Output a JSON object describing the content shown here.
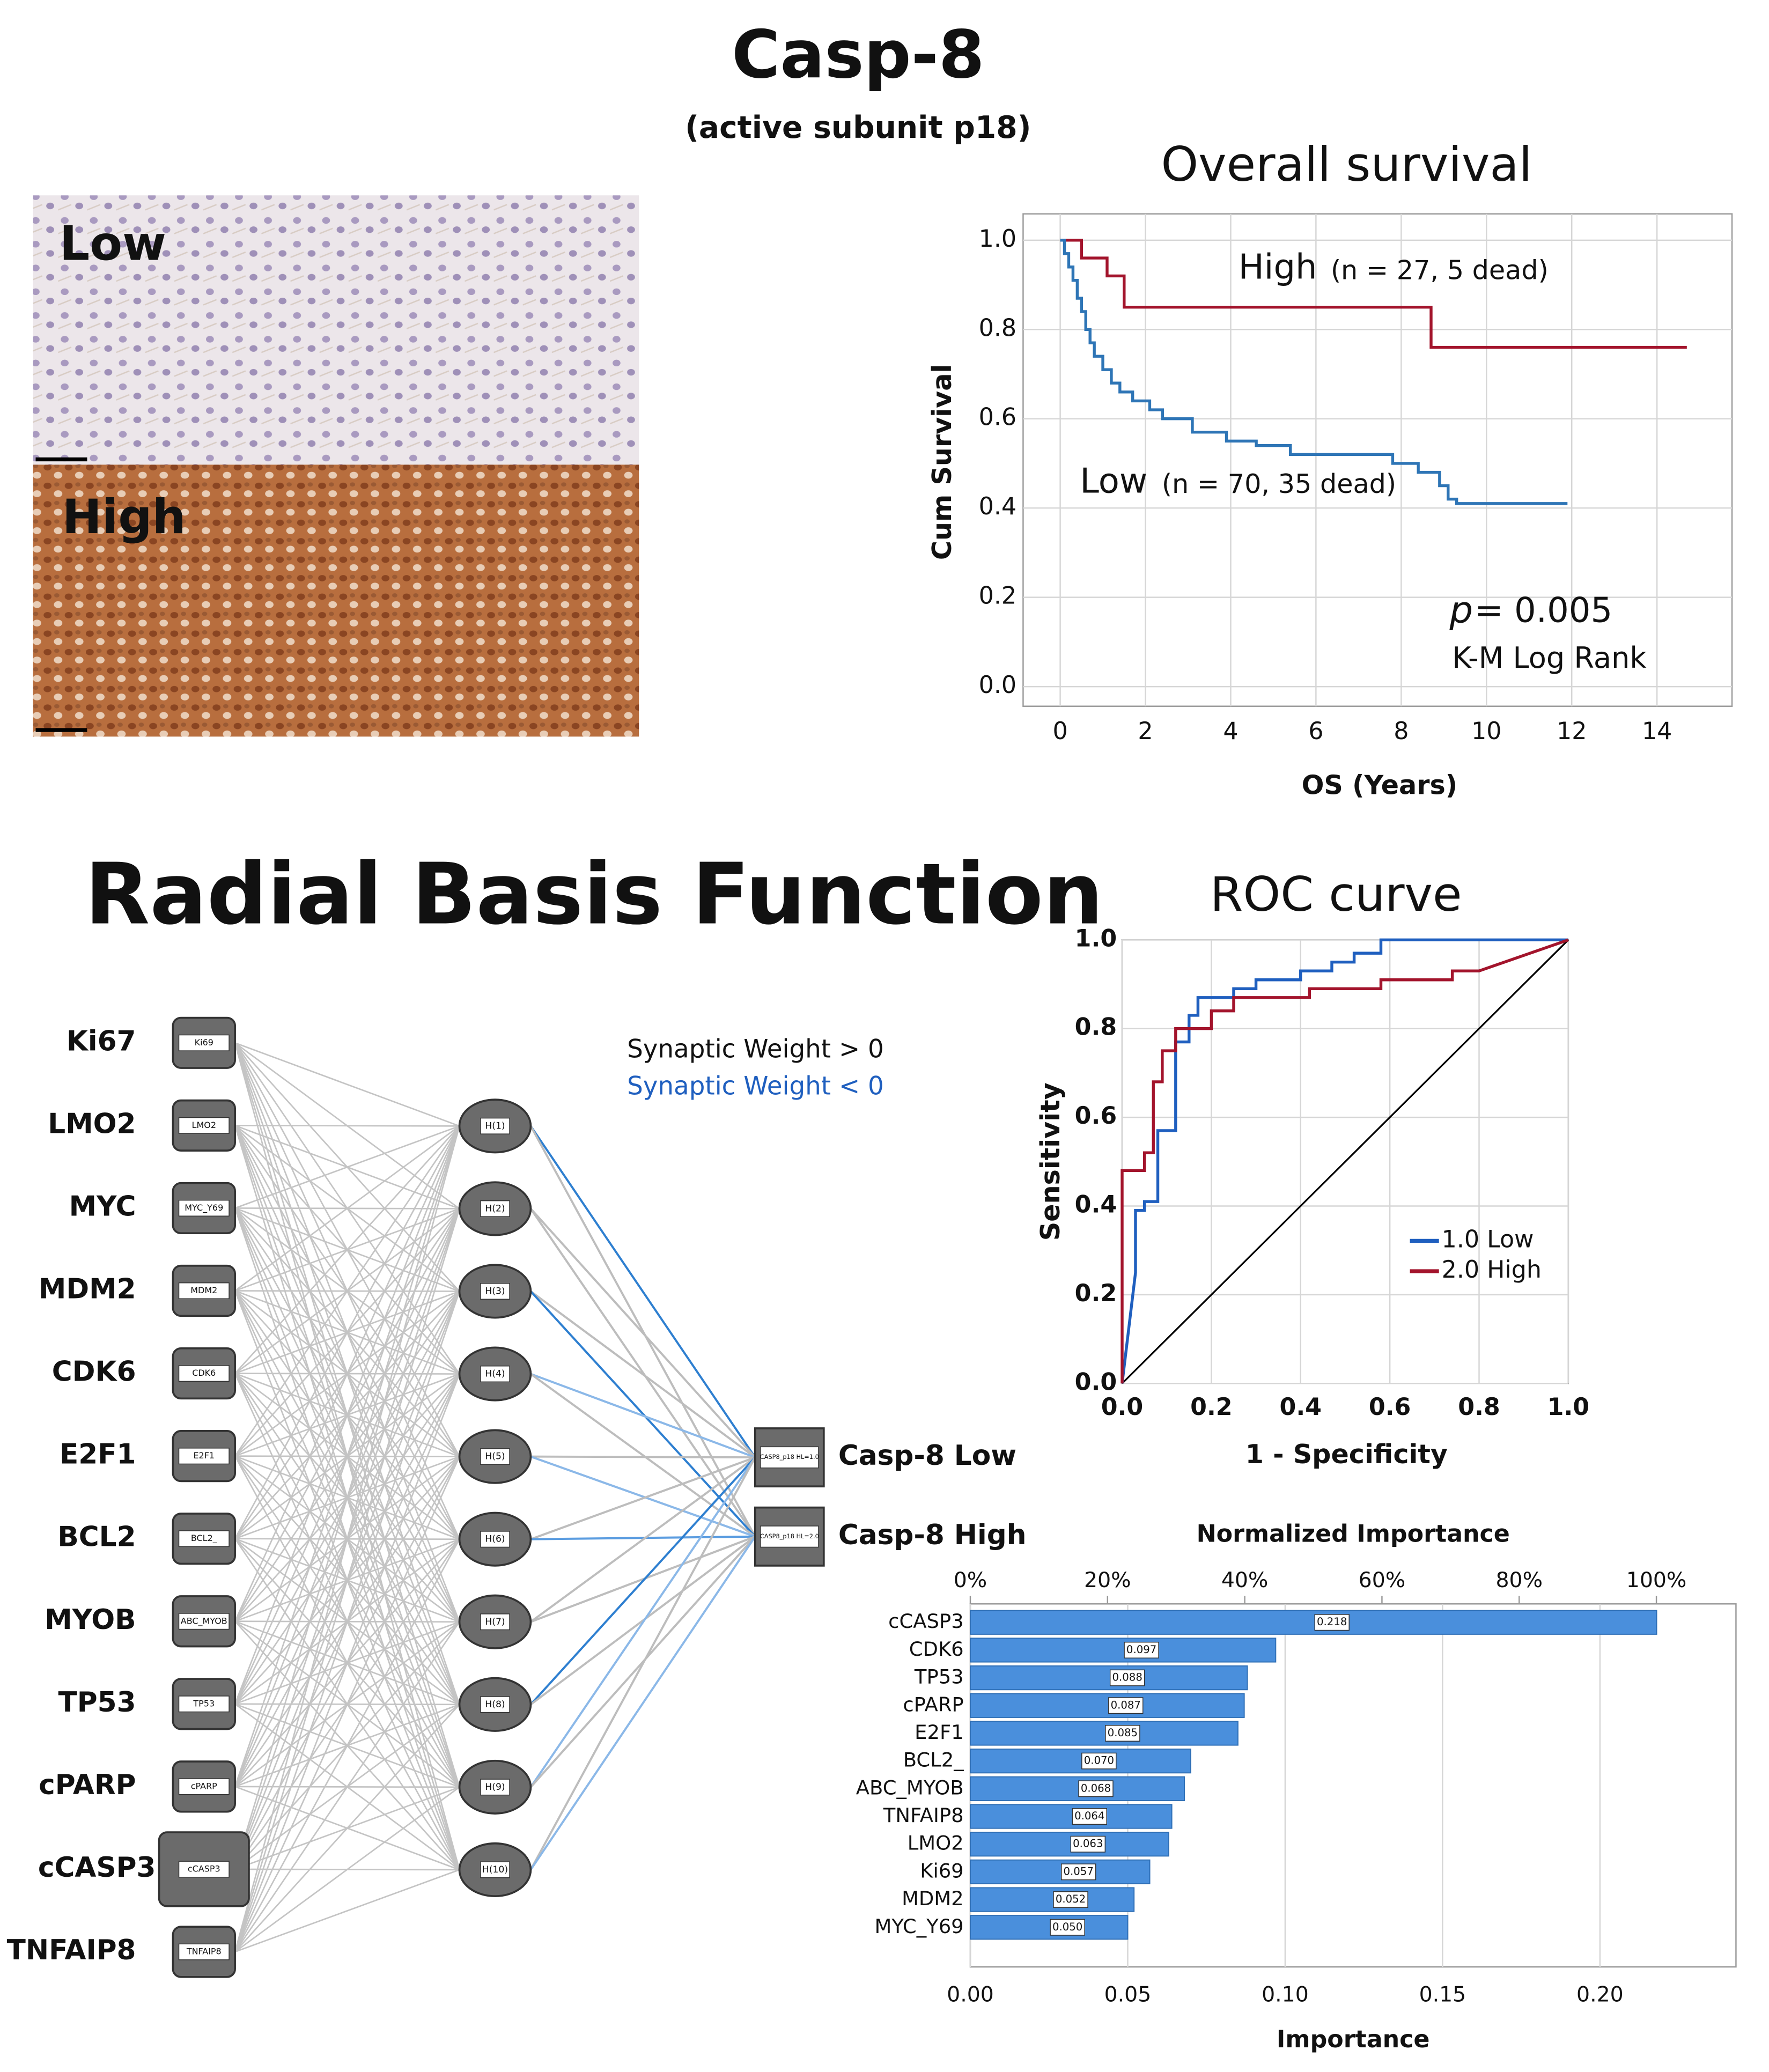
{
  "figure": {
    "title": "Casp-8",
    "subtitle": "(active subunit p18)",
    "panels": [
      "Low",
      "High"
    ]
  },
  "network": {
    "title": "Radial Basis Function",
    "legend": [
      "Synaptic Weight > 0",
      "Synaptic Weight < 0"
    ],
    "inputs": [
      {
        "label": "Ki67",
        "node": "Ki69"
      },
      {
        "label": "LMO2",
        "node": "LMO2"
      },
      {
        "label": "MYC",
        "node": "MYC_Y69"
      },
      {
        "label": "MDM2",
        "node": "MDM2"
      },
      {
        "label": "CDK6",
        "node": "CDK6"
      },
      {
        "label": "E2F1",
        "node": "E2F1"
      },
      {
        "label": "BCL2",
        "node": "BCL2_"
      },
      {
        "label": "MYOB",
        "node": "ABC_MYOB"
      },
      {
        "label": "TP53",
        "node": "TP53"
      },
      {
        "label": "cPARP",
        "node": "cPARP"
      },
      {
        "label": "cCASP3",
        "node": "cCASP3"
      },
      {
        "label": "TNFAIP8",
        "node": "TNFAIP8"
      }
    ],
    "hidden": [
      "H(1)",
      "H(2)",
      "H(3)",
      "H(4)",
      "H(5)",
      "H(6)",
      "H(7)",
      "H(8)",
      "H(9)",
      "H(10)"
    ],
    "outputs": [
      {
        "label": "Casp-8 Low",
        "node": "CASP8_p18 HL=1.0"
      },
      {
        "label": "Casp-8 High",
        "node": "CASP8_p18 HL=2.0"
      }
    ]
  },
  "chart_data": [
    {
      "type": "line",
      "title": "Overall survival",
      "x_label": "OS (Years)",
      "y_label": "Cum Survival",
      "grid": true,
      "xlim": [
        -0.87,
        15.76
      ],
      "ylim": [
        -0.044,
        1.059
      ],
      "xticks": [
        0,
        2,
        4,
        6,
        8,
        10,
        12,
        14
      ],
      "yticks": [
        {
          "value": 0,
          "label": "0.0"
        },
        0.2,
        0.4,
        0.6,
        0.8,
        {
          "value": 1,
          "label": "1.0"
        }
      ],
      "series": [
        {
          "name": "High",
          "annotation": "(n = 27, 5 dead)",
          "color": "#a3142c",
          "x": [
            0,
            0.5,
            0.5,
            1.1,
            1.1,
            1.5,
            1.5,
            8.7,
            8.7,
            14.7
          ],
          "values": [
            1,
            1,
            0.96,
            0.96,
            0.92,
            0.92,
            0.85,
            0.85,
            0.76,
            0.76
          ]
        },
        {
          "name": "Low",
          "annotation": "(n = 70, 35 dead)",
          "color": "#2e75b6",
          "x": [
            0,
            0.1,
            0.1,
            0.2,
            0.2,
            0.3,
            0.3,
            0.4,
            0.4,
            0.5,
            0.5,
            0.6,
            0.6,
            0.7,
            0.7,
            0.8,
            0.8,
            1.0,
            1.0,
            1.2,
            1.2,
            1.4,
            1.4,
            1.7,
            1.7,
            2.1,
            2.1,
            2.4,
            2.4,
            3.1,
            3.1,
            3.9,
            3.9,
            4.6,
            4.6,
            5.4,
            5.4,
            7.8,
            7.8,
            8.4,
            8.4,
            8.9,
            8.9,
            9.1,
            9.1,
            9.3,
            9.3,
            11.9
          ],
          "values": [
            1,
            1,
            0.97,
            0.97,
            0.94,
            0.94,
            0.91,
            0.91,
            0.87,
            0.87,
            0.84,
            0.84,
            0.8,
            0.8,
            0.77,
            0.77,
            0.74,
            0.74,
            0.71,
            0.71,
            0.68,
            0.68,
            0.66,
            0.66,
            0.64,
            0.64,
            0.62,
            0.62,
            0.6,
            0.6,
            0.57,
            0.57,
            0.55,
            0.55,
            0.54,
            0.54,
            0.52,
            0.52,
            0.5,
            0.5,
            0.48,
            0.48,
            0.45,
            0.45,
            0.42,
            0.42,
            0.41,
            0.41
          ]
        }
      ],
      "annotations": [
        "p",
        "= 0.005",
        "K-M Log Rank"
      ]
    },
    {
      "type": "line",
      "title": "ROC curve",
      "x_label": "1 - Specificity",
      "y_label": "Sensitivity",
      "grid": true,
      "diagonal": true,
      "legend": "center right",
      "xlim": [
        0,
        1
      ],
      "ylim": [
        0,
        1
      ],
      "xticks": [
        {
          "value": 0,
          "label": "0.0"
        },
        0.2,
        0.4,
        0.6,
        0.8,
        {
          "value": 1,
          "label": "1.0"
        }
      ],
      "yticks": [
        {
          "value": 0,
          "label": "0.0"
        },
        0.2,
        0.4,
        0.6,
        0.8,
        {
          "value": 1,
          "label": "1.0"
        }
      ],
      "series": [
        {
          "name": "1.0 Low",
          "color": "#1f5fbf",
          "x": [
            0,
            0.03,
            0.03,
            0.05,
            0.05,
            0.08,
            0.08,
            0.12,
            0.12,
            0.15,
            0.15,
            0.17,
            0.17,
            0.25,
            0.25,
            0.3,
            0.3,
            0.4,
            0.4,
            0.47,
            0.47,
            0.52,
            0.52,
            0.58,
            0.58,
            1
          ],
          "values": [
            0,
            0.25,
            0.39,
            0.39,
            0.41,
            0.41,
            0.57,
            0.57,
            0.77,
            0.77,
            0.83,
            0.83,
            0.87,
            0.87,
            0.89,
            0.89,
            0.91,
            0.91,
            0.93,
            0.93,
            0.95,
            0.95,
            0.97,
            0.97,
            1,
            1
          ]
        },
        {
          "name": "2.0 High",
          "color": "#a3142c",
          "x": [
            0,
            0,
            0.05,
            0.05,
            0.07,
            0.07,
            0.09,
            0.09,
            0.12,
            0.12,
            0.2,
            0.2,
            0.25,
            0.25,
            0.42,
            0.42,
            0.58,
            0.58,
            0.74,
            0.74,
            0.8,
            1
          ],
          "values": [
            0,
            0.48,
            0.48,
            0.52,
            0.52,
            0.68,
            0.68,
            0.75,
            0.75,
            0.8,
            0.8,
            0.84,
            0.84,
            0.87,
            0.87,
            0.89,
            0.89,
            0.91,
            0.91,
            0.93,
            0.93,
            1
          ]
        }
      ]
    },
    {
      "type": "bar",
      "orientation": "horizontal",
      "title": "Normalized Importance",
      "x_label": "Importance",
      "grid": true,
      "color": "#4a8fdc",
      "categories": [
        "cCASP3",
        "CDK6",
        "TP53",
        "cPARP",
        "E2F1",
        "BCL2_",
        "ABC_MYOB",
        "TNFAIP8",
        "LMO2",
        "Ki69",
        "MDM2",
        "MYC_Y69"
      ],
      "values": [
        0.218,
        0.097,
        0.088,
        0.087,
        0.085,
        0.07,
        0.068,
        0.064,
        0.063,
        0.057,
        0.052,
        0.05
      ],
      "value_labels": [
        "0.218",
        "0.097",
        "0.088",
        "0.087",
        "0.085",
        "0.070",
        "0.068",
        "0.064",
        "0.063",
        "0.057",
        "0.052",
        "0.050"
      ],
      "xlim": [
        0,
        0.2432
      ],
      "xticks": [
        {
          "value": 0,
          "label": "0.00"
        },
        {
          "value": 0.05,
          "label": "0.05"
        },
        {
          "value": 0.1,
          "label": "0.10"
        },
        {
          "value": 0.15,
          "label": "0.15"
        },
        {
          "value": 0.2,
          "label": "0.20"
        }
      ],
      "x2lim": [
        0,
        111.6
      ],
      "x2ticks": [
        {
          "value": 0,
          "label": "0%"
        },
        {
          "value": 20,
          "label": "20%"
        },
        {
          "value": 40,
          "label": "40%"
        },
        {
          "value": 60,
          "label": "60%"
        },
        {
          "value": 80,
          "label": "80%"
        },
        {
          "value": 100,
          "label": "100%"
        }
      ]
    }
  ]
}
